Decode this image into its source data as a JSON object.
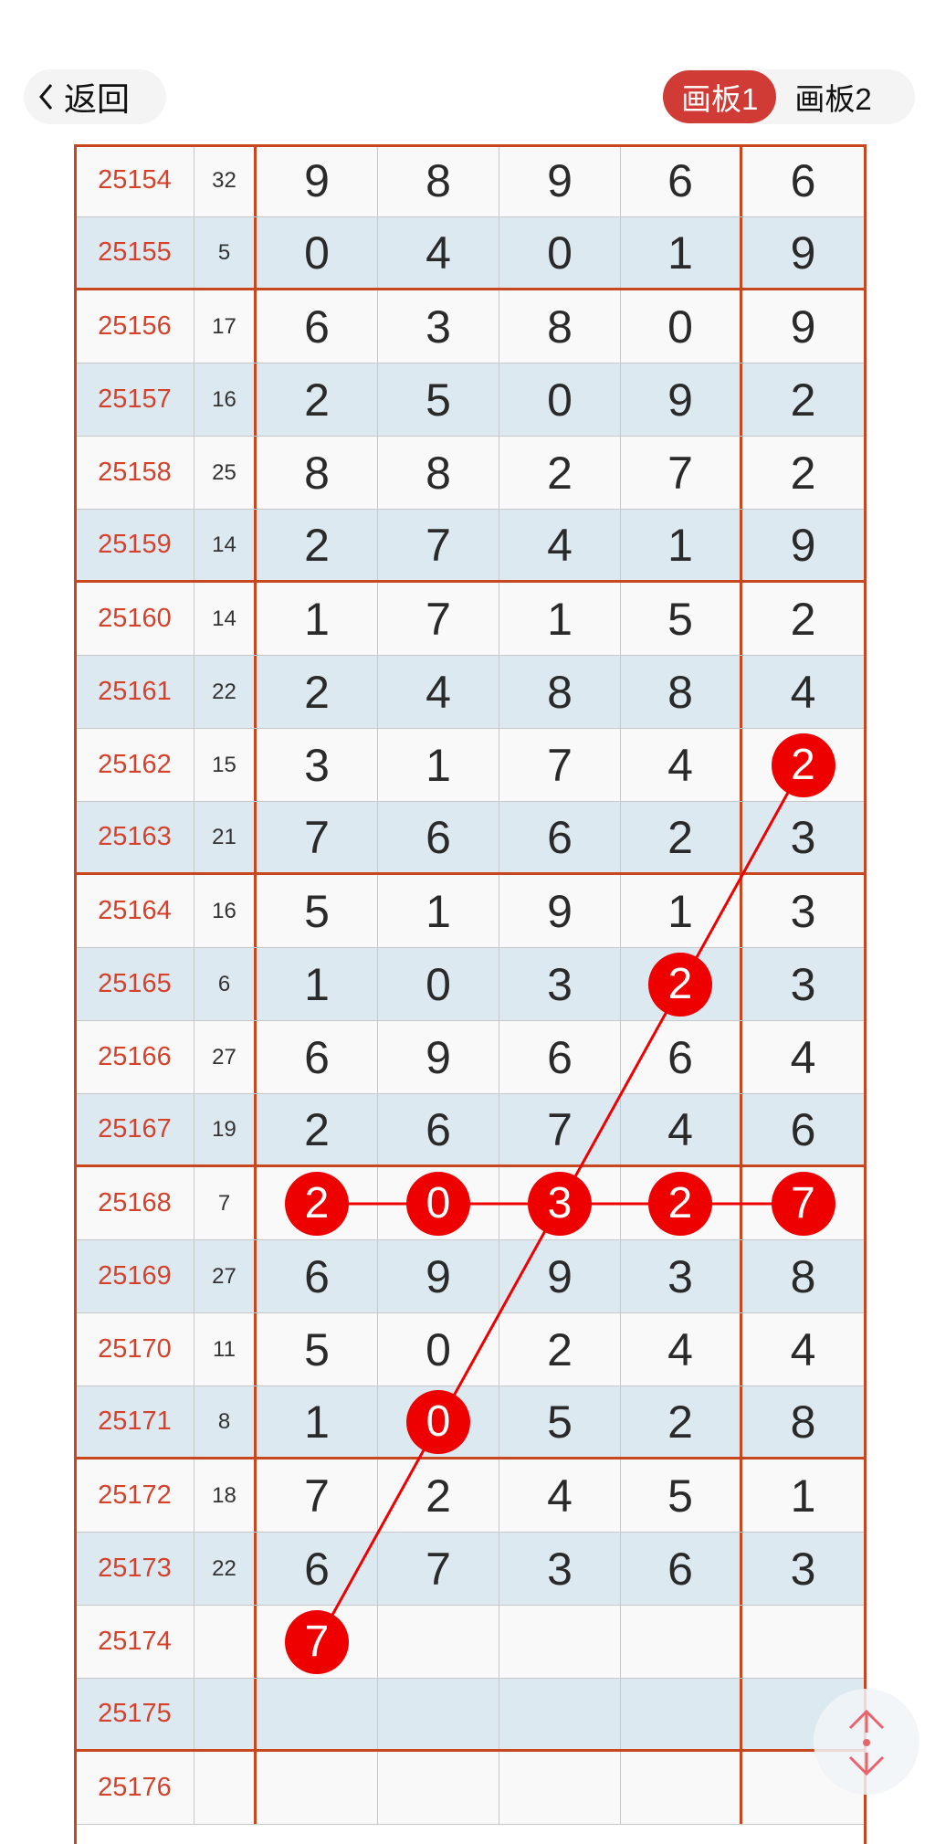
{
  "header": {
    "back_label": "返回",
    "tabs": [
      {
        "label": "画板1",
        "active": true
      },
      {
        "label": "画板2",
        "active": false
      }
    ]
  },
  "colors": {
    "accent": "#d13b36",
    "grid_line": "#c9461f",
    "ball": "#ee0000",
    "odd_row": "#dde9f1",
    "id_text": "#d5412a"
  },
  "table": {
    "rows": [
      {
        "id": "25154",
        "sum": "32",
        "d": [
          "9",
          "8",
          "9",
          "6",
          "6"
        ]
      },
      {
        "id": "25155",
        "sum": "5",
        "d": [
          "0",
          "4",
          "0",
          "1",
          "9"
        ]
      },
      {
        "id": "25156",
        "sum": "17",
        "d": [
          "6",
          "3",
          "8",
          "0",
          "9"
        ]
      },
      {
        "id": "25157",
        "sum": "16",
        "d": [
          "2",
          "5",
          "0",
          "9",
          "2"
        ]
      },
      {
        "id": "25158",
        "sum": "25",
        "d": [
          "8",
          "8",
          "2",
          "7",
          "2"
        ]
      },
      {
        "id": "25159",
        "sum": "14",
        "d": [
          "2",
          "7",
          "4",
          "1",
          "9"
        ]
      },
      {
        "id": "25160",
        "sum": "14",
        "d": [
          "1",
          "7",
          "1",
          "5",
          "2"
        ]
      },
      {
        "id": "25161",
        "sum": "22",
        "d": [
          "2",
          "4",
          "8",
          "8",
          "4"
        ]
      },
      {
        "id": "25162",
        "sum": "15",
        "d": [
          "3",
          "1",
          "7",
          "4",
          "2"
        ]
      },
      {
        "id": "25163",
        "sum": "21",
        "d": [
          "7",
          "6",
          "6",
          "2",
          "3"
        ]
      },
      {
        "id": "25164",
        "sum": "16",
        "d": [
          "5",
          "1",
          "9",
          "1",
          "3"
        ]
      },
      {
        "id": "25165",
        "sum": "6",
        "d": [
          "1",
          "0",
          "3",
          "2",
          "3"
        ]
      },
      {
        "id": "25166",
        "sum": "27",
        "d": [
          "6",
          "9",
          "6",
          "6",
          "4"
        ]
      },
      {
        "id": "25167",
        "sum": "19",
        "d": [
          "2",
          "6",
          "7",
          "4",
          "6"
        ]
      },
      {
        "id": "25168",
        "sum": "7",
        "d": [
          "2",
          "0",
          "3",
          "2",
          "7"
        ]
      },
      {
        "id": "25169",
        "sum": "27",
        "d": [
          "6",
          "9",
          "9",
          "3",
          "8"
        ]
      },
      {
        "id": "25170",
        "sum": "11",
        "d": [
          "5",
          "0",
          "2",
          "4",
          "4"
        ]
      },
      {
        "id": "25171",
        "sum": "8",
        "d": [
          "1",
          "0",
          "5",
          "2",
          "8"
        ]
      },
      {
        "id": "25172",
        "sum": "18",
        "d": [
          "7",
          "2",
          "4",
          "5",
          "1"
        ]
      },
      {
        "id": "25173",
        "sum": "22",
        "d": [
          "6",
          "7",
          "3",
          "6",
          "3"
        ]
      },
      {
        "id": "25174",
        "sum": "",
        "d": [
          "7",
          "",
          "",
          "",
          ""
        ]
      },
      {
        "id": "25175",
        "sum": "",
        "d": [
          "",
          "",
          "",
          "",
          ""
        ]
      },
      {
        "id": "25176",
        "sum": "",
        "d": [
          "",
          "",
          "",
          "",
          ""
        ]
      }
    ],
    "separators_after": [
      "25155",
      "25159",
      "25163",
      "25167",
      "25171",
      "25175"
    ]
  },
  "marks": {
    "balls": [
      {
        "row": "25162",
        "col": 5,
        "value": "2"
      },
      {
        "row": "25165",
        "col": 4,
        "value": "2"
      },
      {
        "row": "25168",
        "col": 1,
        "value": "2"
      },
      {
        "row": "25168",
        "col": 2,
        "value": "0"
      },
      {
        "row": "25168",
        "col": 3,
        "value": "3"
      },
      {
        "row": "25168",
        "col": 4,
        "value": "2"
      },
      {
        "row": "25168",
        "col": 5,
        "value": "7"
      },
      {
        "row": "25171",
        "col": 2,
        "value": "0"
      },
      {
        "row": "25174",
        "col": 1,
        "value": "7"
      }
    ],
    "lines": [
      {
        "from": {
          "row": "25162",
          "col": 5
        },
        "to": {
          "row": "25174",
          "col": 1
        }
      },
      {
        "from": {
          "row": "25168",
          "col": 1
        },
        "to": {
          "row": "25168",
          "col": 5
        }
      }
    ]
  },
  "scroll_button": {
    "icon": "up-down-arrows-icon"
  }
}
